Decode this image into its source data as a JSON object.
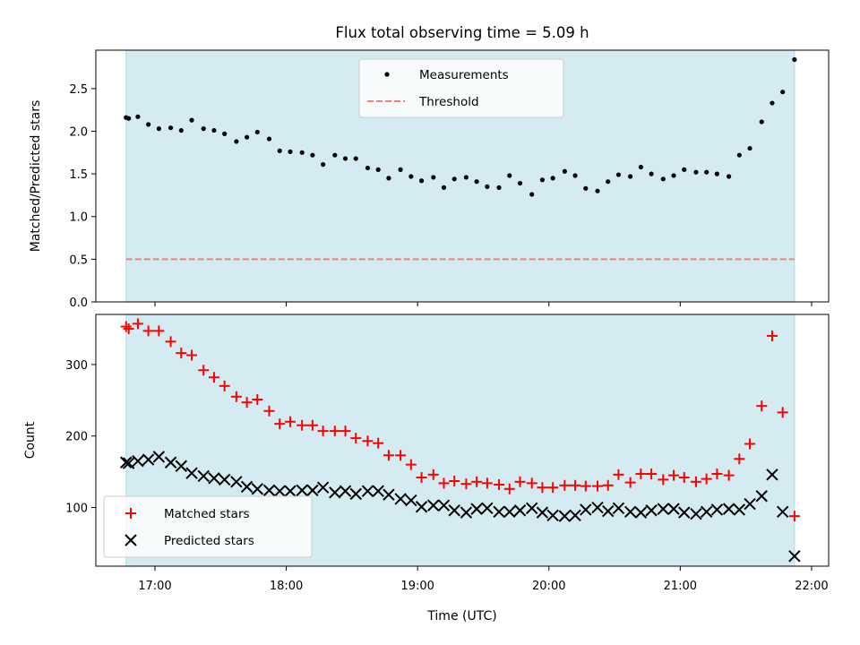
{
  "figure": {
    "title": "Flux total observing time = 5.09 h",
    "xlabel": "Time (UTC)"
  },
  "colors": {
    "shade": "#d4ebf1",
    "shade_edge": "#b0dbe6",
    "measurements": "#000000",
    "threshold": "#f08080",
    "matched": "#ff0000",
    "predicted": "#000000"
  },
  "chart_data": [
    {
      "type": "scatter",
      "panel": "top",
      "ylabel": "Matched/Predicted stars",
      "ylim": [
        0,
        2.95
      ],
      "yticks": [
        0.0,
        0.5,
        1.0,
        1.5,
        2.0,
        2.5
      ],
      "ytick_labels": [
        "0.0",
        "0.5",
        "1.0",
        "1.5",
        "2.0",
        "2.5"
      ],
      "xlim": [
        16.55,
        22.13
      ],
      "xticks": [
        17,
        18,
        19,
        20,
        21,
        22
      ],
      "shaded_span": [
        16.78,
        21.87
      ],
      "threshold": {
        "y": 0.5,
        "x": [
          16.78,
          21.87
        ]
      },
      "legend": {
        "placement": "upper-center",
        "entries": [
          "Measurements",
          "Threshold"
        ]
      },
      "series": [
        {
          "name": "Measurements",
          "x": [
            16.78,
            16.8,
            16.87,
            16.95,
            17.03,
            17.12,
            17.2,
            17.28,
            17.37,
            17.45,
            17.53,
            17.62,
            17.7,
            17.78,
            17.87,
            17.95,
            18.03,
            18.12,
            18.2,
            18.28,
            18.37,
            18.45,
            18.53,
            18.62,
            18.7,
            18.78,
            18.87,
            18.95,
            19.03,
            19.12,
            19.2,
            19.28,
            19.37,
            19.45,
            19.53,
            19.62,
            19.7,
            19.78,
            19.87,
            19.95,
            20.03,
            20.12,
            20.2,
            20.28,
            20.37,
            20.45,
            20.53,
            20.62,
            20.7,
            20.78,
            20.87,
            20.95,
            21.03,
            21.12,
            21.2,
            21.28,
            21.37,
            21.45,
            21.53,
            21.62,
            21.7,
            21.78,
            21.87
          ],
          "y": [
            2.16,
            2.15,
            2.17,
            2.08,
            2.03,
            2.04,
            2.01,
            2.13,
            2.03,
            2.01,
            1.97,
            1.88,
            1.93,
            1.99,
            1.91,
            1.77,
            1.76,
            1.75,
            1.72,
            1.61,
            1.72,
            1.68,
            1.68,
            1.57,
            1.55,
            1.45,
            1.55,
            1.47,
            1.42,
            1.46,
            1.34,
            1.44,
            1.46,
            1.41,
            1.35,
            1.34,
            1.48,
            1.39,
            1.26,
            1.43,
            1.45,
            1.53,
            1.48,
            1.33,
            1.3,
            1.41,
            1.49,
            1.47,
            1.58,
            1.5,
            1.44,
            1.48,
            1.55,
            1.52,
            1.52,
            1.5,
            1.47,
            1.72,
            1.8,
            2.11,
            2.33,
            2.46,
            2.84
          ]
        }
      ]
    },
    {
      "type": "scatter",
      "panel": "bottom",
      "ylabel": "Count",
      "ylim": [
        18,
        370
      ],
      "yticks": [
        100,
        200,
        300
      ],
      "ytick_labels": [
        "100",
        "200",
        "300"
      ],
      "xlim": [
        16.55,
        22.13
      ],
      "xticks": [
        17,
        18,
        19,
        20,
        21,
        22
      ],
      "xtick_labels": [
        "17:00",
        "18:00",
        "19:00",
        "20:00",
        "21:00",
        "22:00"
      ],
      "shaded_span": [
        16.78,
        21.87
      ],
      "legend": {
        "placement": "lower-left",
        "entries": [
          "Matched stars",
          "Predicted stars"
        ]
      },
      "series": [
        {
          "name": "Matched stars",
          "marker": "plus",
          "x": [
            16.78,
            16.8,
            16.87,
            16.95,
            17.03,
            17.12,
            17.2,
            17.28,
            17.37,
            17.45,
            17.53,
            17.62,
            17.7,
            17.78,
            17.87,
            17.95,
            18.03,
            18.12,
            18.2,
            18.28,
            18.37,
            18.45,
            18.53,
            18.62,
            18.7,
            18.78,
            18.87,
            18.95,
            19.03,
            19.12,
            19.2,
            19.28,
            19.37,
            19.45,
            19.53,
            19.62,
            19.7,
            19.78,
            19.87,
            19.95,
            20.03,
            20.12,
            20.2,
            20.28,
            20.37,
            20.45,
            20.53,
            20.62,
            20.7,
            20.78,
            20.87,
            20.95,
            21.03,
            21.12,
            21.2,
            21.28,
            21.37,
            21.45,
            21.53,
            21.62,
            21.7,
            21.78,
            21.87
          ],
          "y": [
            353,
            350,
            357,
            347,
            347,
            332,
            316,
            313,
            292,
            282,
            270,
            255,
            247,
            251,
            235,
            217,
            220,
            215,
            215,
            207,
            207,
            207,
            197,
            193,
            190,
            173,
            173,
            160,
            142,
            146,
            134,
            137,
            133,
            136,
            134,
            132,
            126,
            136,
            134,
            128,
            128,
            131,
            131,
            130,
            130,
            131,
            146,
            135,
            147,
            147,
            139,
            145,
            142,
            136,
            140,
            147,
            145,
            168,
            189,
            242,
            340,
            233,
            88
          ]
        },
        {
          "name": "Predicted stars",
          "marker": "x",
          "x": [
            16.78,
            16.8,
            16.87,
            16.95,
            17.03,
            17.12,
            17.2,
            17.28,
            17.37,
            17.45,
            17.53,
            17.62,
            17.7,
            17.78,
            17.87,
            17.95,
            18.03,
            18.12,
            18.2,
            18.28,
            18.37,
            18.45,
            18.53,
            18.62,
            18.7,
            18.78,
            18.87,
            18.95,
            19.03,
            19.12,
            19.2,
            19.28,
            19.37,
            19.45,
            19.53,
            19.62,
            19.7,
            19.78,
            19.87,
            19.95,
            20.03,
            20.12,
            20.2,
            20.28,
            20.37,
            20.45,
            20.53,
            20.62,
            20.7,
            20.78,
            20.87,
            20.95,
            21.03,
            21.12,
            21.2,
            21.28,
            21.37,
            21.45,
            21.53,
            21.62,
            21.7,
            21.78,
            21.87
          ],
          "y": [
            163,
            162,
            165,
            167,
            171,
            163,
            158,
            148,
            144,
            141,
            139,
            136,
            129,
            126,
            124,
            123,
            123,
            124,
            124,
            128,
            121,
            123,
            119,
            123,
            123,
            118,
            112,
            110,
            101,
            103,
            103,
            96,
            93,
            98,
            99,
            94,
            94,
            96,
            99,
            93,
            89,
            88,
            89,
            97,
            100,
            95,
            99,
            94,
            93,
            96,
            98,
            98,
            93,
            91,
            94,
            97,
            98,
            97,
            105,
            116,
            146,
            94,
            32
          ]
        }
      ]
    }
  ]
}
